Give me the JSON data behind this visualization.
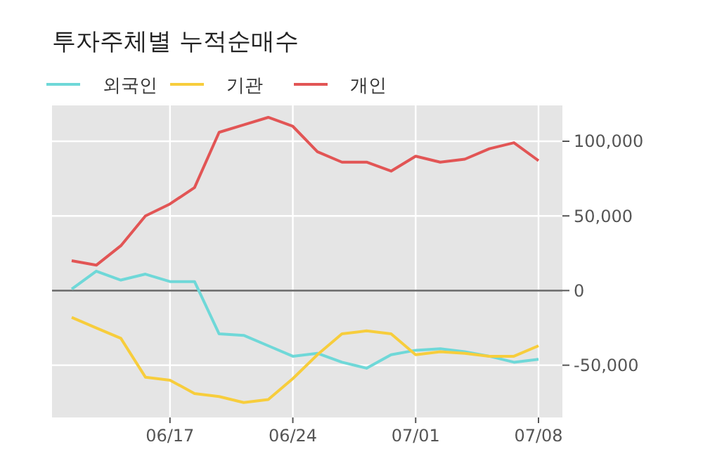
{
  "chart_data": {
    "type": "line",
    "title": "투자주체별 누적순매수",
    "categories": [
      null,
      null,
      null,
      null,
      "06/17",
      null,
      null,
      null,
      null,
      "06/24",
      null,
      null,
      null,
      null,
      "07/01",
      null,
      null,
      null,
      null,
      "07/08"
    ],
    "series": [
      {
        "name": "외국인",
        "color": "#6fd8d8",
        "values": [
          1000,
          13000,
          7000,
          11000,
          6000,
          6000,
          -29000,
          -30000,
          -37000,
          -44000,
          -42000,
          -48000,
          -52000,
          -43000,
          -40000,
          -39000,
          -41000,
          -44000,
          -48000,
          -46000
        ]
      },
      {
        "name": "기관",
        "color": "#f7cd3c",
        "values": [
          -18000,
          -25000,
          -32000,
          -58000,
          -60000,
          -69000,
          -71000,
          -75000,
          -73000,
          -59000,
          -43000,
          -29000,
          -27000,
          -29000,
          -43000,
          -41000,
          -42000,
          -44000,
          -44000,
          -37000
        ]
      },
      {
        "name": "개인",
        "color": "#e25555",
        "values": [
          20000,
          17000,
          30000,
          50000,
          58000,
          69000,
          106000,
          111000,
          116000,
          110000,
          93000,
          86000,
          86000,
          80000,
          90000,
          86000,
          88000,
          95000,
          99000,
          87000
        ]
      }
    ],
    "ylim": [
      -85000,
      124000
    ],
    "yticks": [
      {
        "value": -50000,
        "label": "-50,000"
      },
      0,
      {
        "value": 50000,
        "label": "50,000"
      },
      {
        "value": 100000,
        "label": "100,000"
      }
    ],
    "ref_lines": [
      {
        "axis": "y",
        "value": 0,
        "color": "#666666"
      }
    ],
    "grid": true,
    "legend": "top left",
    "marker": "none",
    "line_style": "solid"
  }
}
